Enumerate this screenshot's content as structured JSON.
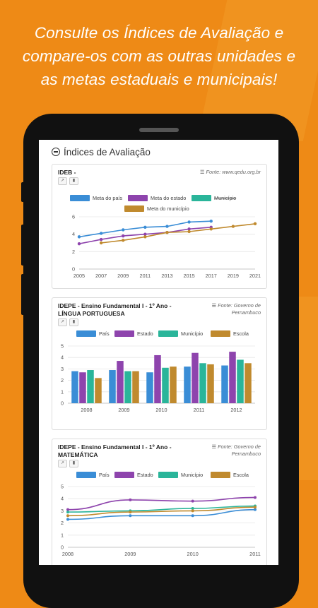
{
  "headline": {
    "line1": "Consulte os Índices de Avaliação e",
    "line2": "compare-os com as outras unidades e",
    "line3": "as metas estaduais e municipais!"
  },
  "section": {
    "title": "Índices de Avaliação"
  },
  "cards": [
    {
      "title1": "IDEB -",
      "title2": "",
      "source1": "Fonte: www.qedu.org.br",
      "source2": ""
    },
    {
      "title1": "IDEPE - Ensino Fundamental I - 1º Ano -",
      "title2": "LÍNGUA PORTUGUESA",
      "source1": "Fonte: Governo de",
      "source2": "Pernambuco"
    },
    {
      "title1": "IDEPE - Ensino Fundamental I - 1º Ano -",
      "title2": "MATEMÁTICA",
      "source1": "Fonte: Governo de",
      "source2": "Pernambuco"
    }
  ],
  "chart_data": [
    {
      "type": "line",
      "x": [
        2005,
        2007,
        2009,
        2011,
        2013,
        2015,
        2017,
        2019,
        2021
      ],
      "ylim": [
        0,
        6
      ],
      "yticks": [
        0,
        2,
        4,
        6
      ],
      "series": [
        {
          "name": "Meta do país",
          "color": "#3a8dd6",
          "values": [
            3.7,
            4.1,
            4.5,
            4.8,
            4.9,
            5.4,
            5.5,
            null,
            null
          ]
        },
        {
          "name": "Meta do estado",
          "color": "#8e44ad",
          "values": [
            2.9,
            3.4,
            3.8,
            4.0,
            4.2,
            4.6,
            4.8,
            null,
            null
          ]
        },
        {
          "name": "Município",
          "color": "#2ab59a",
          "values": [
            null,
            null,
            null,
            null,
            null,
            null,
            null,
            null,
            null
          ],
          "hidden": true
        },
        {
          "name": "Meta do município",
          "color": "#c08a2e",
          "values": [
            null,
            3.0,
            3.3,
            3.7,
            4.2,
            4.3,
            4.6,
            4.9,
            5.2
          ]
        }
      ]
    },
    {
      "type": "bar",
      "categories": [
        "2008",
        "2009",
        "2010",
        "2011",
        "2012"
      ],
      "ylim": [
        0,
        5
      ],
      "yticks": [
        0,
        1,
        2,
        3,
        4,
        5
      ],
      "series": [
        {
          "name": "País",
          "color": "#3a8dd6",
          "values": [
            2.8,
            2.9,
            2.7,
            3.2,
            3.3
          ]
        },
        {
          "name": "Estado",
          "color": "#8e44ad",
          "values": [
            2.7,
            3.7,
            4.2,
            4.4,
            4.5
          ]
        },
        {
          "name": "Município",
          "color": "#2ab59a",
          "values": [
            2.9,
            2.8,
            3.1,
            3.5,
            3.8
          ]
        },
        {
          "name": "Escola",
          "color": "#c08a2e",
          "values": [
            2.2,
            2.8,
            3.2,
            3.4,
            3.5
          ]
        }
      ]
    },
    {
      "type": "line",
      "x": [
        2008,
        2009,
        2010,
        2011
      ],
      "ylim": [
        0,
        5
      ],
      "yticks": [
        0,
        1,
        2,
        3,
        4,
        5
      ],
      "series": [
        {
          "name": "País",
          "color": "#3a8dd6",
          "values": [
            2.3,
            2.6,
            2.6,
            3.1
          ]
        },
        {
          "name": "Estado",
          "color": "#8e44ad",
          "values": [
            3.1,
            3.9,
            3.8,
            4.1
          ]
        },
        {
          "name": "Município",
          "color": "#2ab59a",
          "values": [
            2.9,
            3.0,
            3.2,
            3.4
          ]
        },
        {
          "name": "Escola",
          "color": "#c08a2e",
          "values": [
            2.6,
            2.9,
            3.0,
            3.3
          ]
        }
      ]
    }
  ]
}
